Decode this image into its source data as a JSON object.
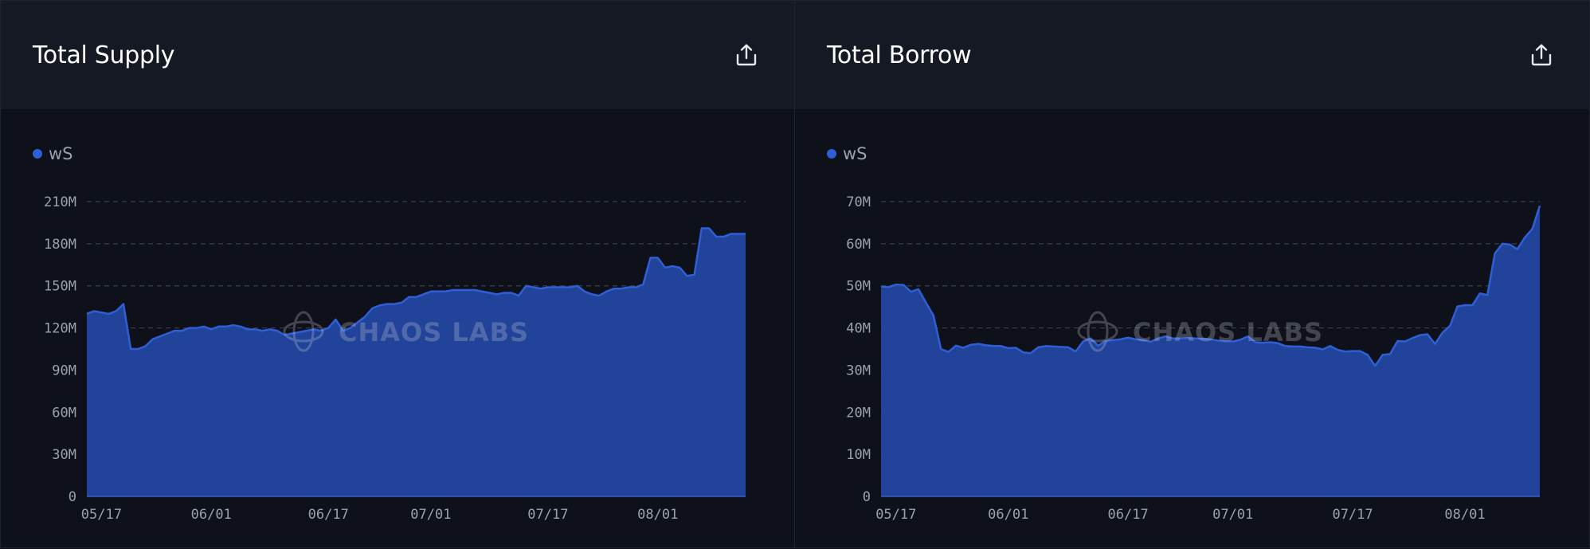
{
  "colors": {
    "series": "#2f5fd6",
    "area_fill": "#2347a0",
    "grid": "#3a3f4b",
    "tick": "#9aa1ae"
  },
  "watermark": "CHAOS LABS",
  "panels": [
    {
      "title": "Total Supply",
      "export_icon": "share-upload-icon",
      "legend": "wS"
    },
    {
      "title": "Total Borrow",
      "export_icon": "share-upload-icon",
      "legend": "wS"
    }
  ],
  "chart_data": [
    {
      "type": "area",
      "title": "Total Supply",
      "xlabel": "",
      "ylabel": "",
      "ylim": [
        0,
        210000000
      ],
      "yticks": [
        0,
        30000000,
        60000000,
        90000000,
        120000000,
        150000000,
        180000000,
        210000000
      ],
      "ytick_labels": [
        "0",
        "30M",
        "60M",
        "90M",
        "120M",
        "150M",
        "180M",
        "210M"
      ],
      "xticks": [
        {
          "label": "05/17",
          "index": 2
        },
        {
          "label": "06/01",
          "index": 17
        },
        {
          "label": "06/17",
          "index": 33
        },
        {
          "label": "07/01",
          "index": 47
        },
        {
          "label": "07/17",
          "index": 63
        },
        {
          "label": "08/01",
          "index": 78
        }
      ],
      "grid": true,
      "legend_position": "top-left",
      "series": [
        {
          "name": "wS",
          "values": [
            130,
            132,
            131,
            130,
            132,
            137,
            105,
            105,
            107,
            112,
            114,
            116,
            118,
            118,
            120,
            120,
            121,
            119,
            121,
            121,
            122,
            121,
            119,
            119,
            118,
            119,
            118,
            115,
            116,
            117,
            118,
            119,
            118,
            120,
            126,
            118,
            120,
            124,
            128,
            134,
            136,
            137,
            137,
            138,
            142,
            142,
            144,
            146,
            146,
            146,
            147,
            147,
            147,
            147,
            146,
            145,
            144,
            145,
            145,
            143,
            150,
            149,
            148,
            149,
            149,
            149,
            149,
            150,
            146,
            144,
            143,
            146,
            148,
            148,
            149,
            149,
            151,
            170,
            170,
            163,
            164,
            163,
            157,
            158,
            191,
            191,
            185,
            185,
            187,
            187,
            187
          ]
        }
      ]
    },
    {
      "type": "area",
      "title": "Total Borrow",
      "xlabel": "",
      "ylabel": "",
      "ylim": [
        0,
        70000000
      ],
      "yticks": [
        0,
        10000000,
        20000000,
        30000000,
        40000000,
        50000000,
        60000000,
        70000000
      ],
      "ytick_labels": [
        "0",
        "10M",
        "20M",
        "30M",
        "40M",
        "50M",
        "60M",
        "70M"
      ],
      "xticks": [
        {
          "label": "05/17",
          "index": 2
        },
        {
          "label": "06/01",
          "index": 17
        },
        {
          "label": "06/17",
          "index": 33
        },
        {
          "label": "07/01",
          "index": 47
        },
        {
          "label": "07/17",
          "index": 63
        },
        {
          "label": "08/01",
          "index": 78
        }
      ],
      "grid": true,
      "legend_position": "top-left",
      "series": [
        {
          "name": "wS",
          "values": [
            49.8,
            49.7,
            50.3,
            50.2,
            48.6,
            49.2,
            46,
            43,
            35,
            34.3,
            35.8,
            35.3,
            36,
            36.2,
            35.9,
            35.7,
            35.7,
            35.2,
            35.3,
            34.2,
            34,
            35.4,
            35.7,
            35.6,
            35.5,
            35.4,
            34.4,
            36.8,
            37.5,
            35.8,
            36.9,
            37.1,
            37.3,
            37.7,
            37.3,
            37.1,
            36.7,
            37.5,
            38,
            37.5,
            37.5,
            37.6,
            37.5,
            37.4,
            37.3,
            37,
            36.8,
            36.8,
            37.2,
            38,
            36.6,
            36.5,
            36.6,
            36.4,
            35.7,
            35.6,
            35.6,
            35.4,
            35.3,
            34.9,
            35.7,
            34.8,
            34.4,
            34.5,
            34.5,
            33.6,
            31,
            33.6,
            33.8,
            36.9,
            36.8,
            37.6,
            38.3,
            38.5,
            36.2,
            38.9,
            40.5,
            45.1,
            45.4,
            45.4,
            48.2,
            47.8,
            57.7,
            60,
            59.8,
            58.7,
            61.5,
            63.5,
            69
          ]
        }
      ]
    }
  ]
}
